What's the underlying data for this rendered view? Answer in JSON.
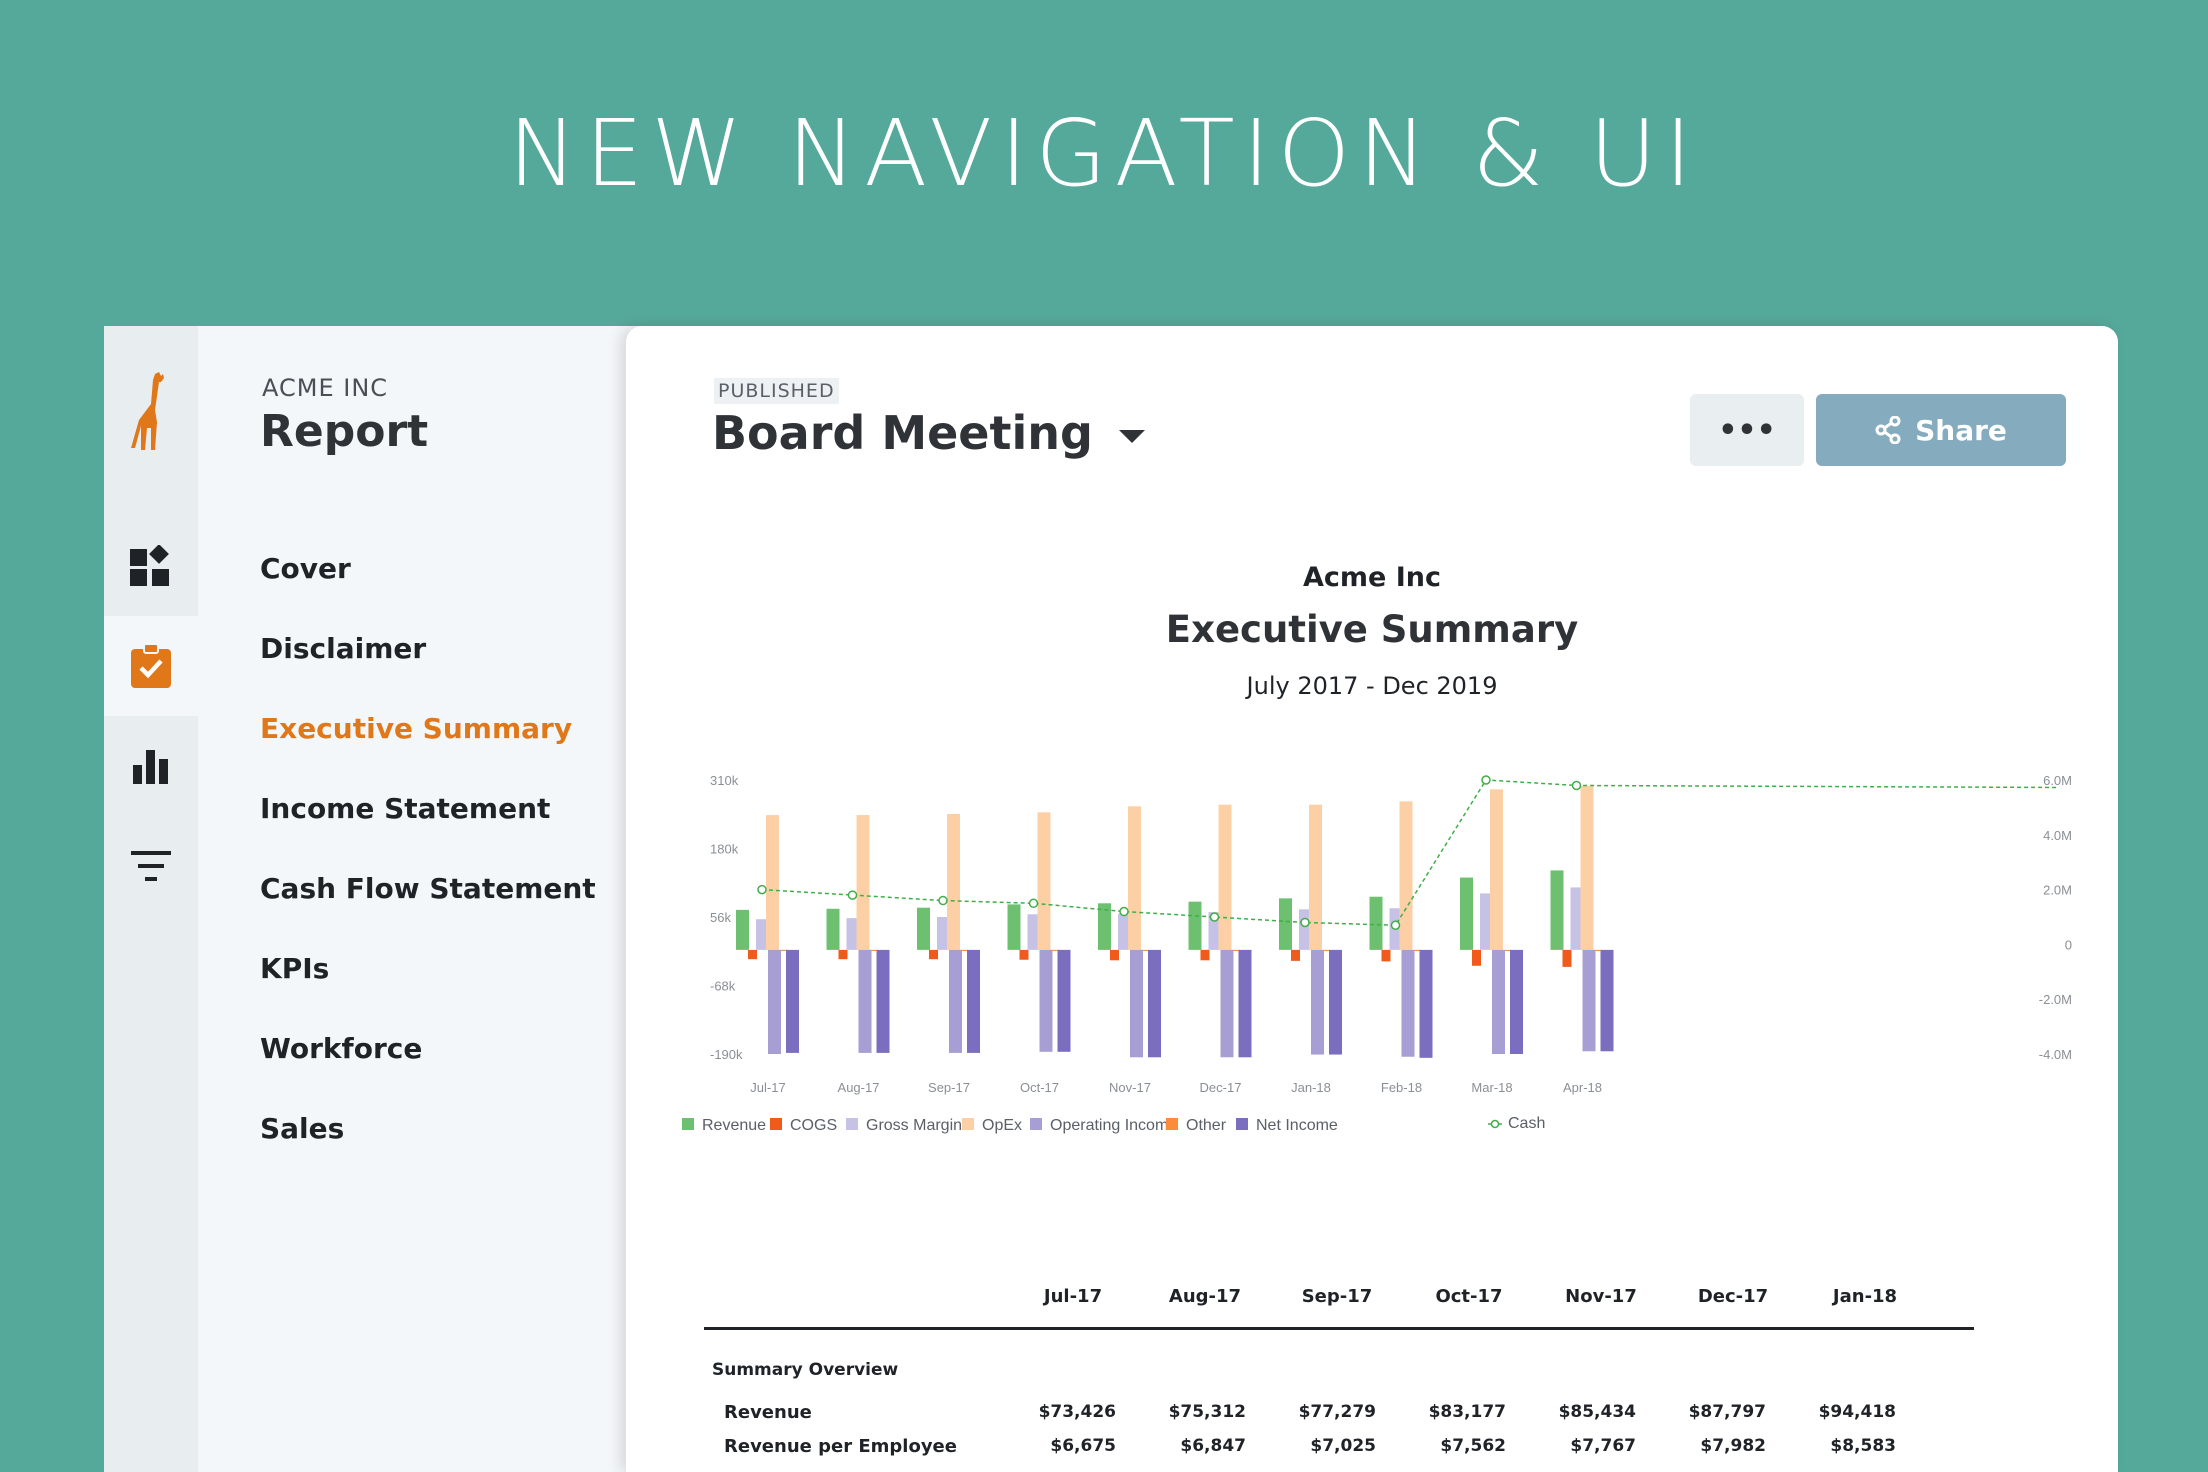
{
  "banner": {
    "title": "NEW NAVIGATION & UI"
  },
  "rail": {
    "items": [
      {
        "icon": "giraffe-logo-icon"
      },
      {
        "icon": "dashboard-icon"
      },
      {
        "icon": "clipboard-check-icon"
      },
      {
        "icon": "bar-chart-icon"
      },
      {
        "icon": "filter-icon"
      }
    ]
  },
  "nav": {
    "company": "ACME INC",
    "title": "Report",
    "items": [
      {
        "label": "Cover"
      },
      {
        "label": "Disclaimer"
      },
      {
        "label": "Executive Summary",
        "active": true
      },
      {
        "label": "Income Statement"
      },
      {
        "label": "Cash Flow Statement"
      },
      {
        "label": "KPIs"
      },
      {
        "label": "Workforce"
      },
      {
        "label": "Sales"
      }
    ]
  },
  "header": {
    "status": "PUBLISHED",
    "title": "Board Meeting",
    "more_label": "•••",
    "share_label": "Share"
  },
  "colors": {
    "accent": "#e0781a",
    "share": "#85abbe",
    "background": "#55a99a"
  },
  "chart_data": {
    "type": "bar",
    "company": "Acme Inc",
    "title": "Executive Summary",
    "subtitle": "July 2017 - Dec 2019",
    "categories": [
      "Jul-17",
      "Aug-17",
      "Sep-17",
      "Oct-17",
      "Nov-17",
      "Dec-17",
      "Jan-18",
      "Feb-18",
      "Mar-18",
      "Apr-18"
    ],
    "y_ticks": [
      "310k",
      "180k",
      "56k",
      "-68k",
      "-190k"
    ],
    "y2_ticks": [
      "6.0M",
      "4.0M",
      "2.0M",
      "0",
      "-2.0M",
      "-4.0M"
    ],
    "ylim": [
      -190,
      310
    ],
    "y2lim": [
      -4.0,
      6.0
    ],
    "series": [
      {
        "name": "Revenue",
        "color": "#6cc070",
        "values": [
          73,
          75,
          77,
          83,
          85,
          88,
          94,
          97,
          132,
          145
        ]
      },
      {
        "name": "COGS",
        "color": "#f05a1a",
        "values": [
          -17,
          -17,
          -17,
          -18,
          -19,
          -19,
          -20,
          -21,
          -29,
          -31
        ]
      },
      {
        "name": "Gross Margin",
        "color": "#c6c2e6",
        "values": [
          56,
          58,
          60,
          65,
          66,
          69,
          74,
          76,
          103,
          114
        ]
      },
      {
        "name": "OpEx",
        "color": "#fcd0a4",
        "values": [
          246,
          246,
          248,
          251,
          262,
          265,
          265,
          271,
          293,
          299
        ]
      },
      {
        "name": "Operating Income",
        "color": "#a79fd4",
        "values": [
          -190,
          -188,
          -188,
          -186,
          -196,
          -196,
          -191,
          -195,
          -190,
          -185
        ]
      },
      {
        "name": "Other",
        "color": "#fb8c3c",
        "values": [
          -2,
          -2,
          -2,
          -2,
          -2,
          -2,
          -2,
          -2,
          -2,
          -2
        ]
      },
      {
        "name": "Net Income",
        "color": "#7c6ebf",
        "values": [
          -188,
          -188,
          -188,
          -186,
          -196,
          -196,
          -191,
          -197,
          -190,
          -185
        ]
      }
    ],
    "line_series": {
      "name": "Cash",
      "color": "#3fae49",
      "axis": "right",
      "values": [
        2.0,
        1.8,
        1.6,
        1.5,
        1.2,
        1.0,
        0.8,
        0.7,
        6.0,
        5.8
      ]
    },
    "legend_position": "bottom",
    "grid": false
  },
  "table": {
    "columns": [
      "Jul-17",
      "Aug-17",
      "Sep-17",
      "Oct-17",
      "Nov-17",
      "Dec-17",
      "Jan-18"
    ],
    "section": "Summary Overview",
    "rows": [
      {
        "label": "Revenue",
        "values": [
          "$73,426",
          "$75,312",
          "$77,279",
          "$83,177",
          "$85,434",
          "$87,797",
          "$94,418"
        ]
      },
      {
        "label": "Revenue per Employee",
        "values": [
          "$6,675",
          "$6,847",
          "$7,025",
          "$7,562",
          "$7,767",
          "$7,982",
          "$8,583"
        ]
      }
    ]
  }
}
